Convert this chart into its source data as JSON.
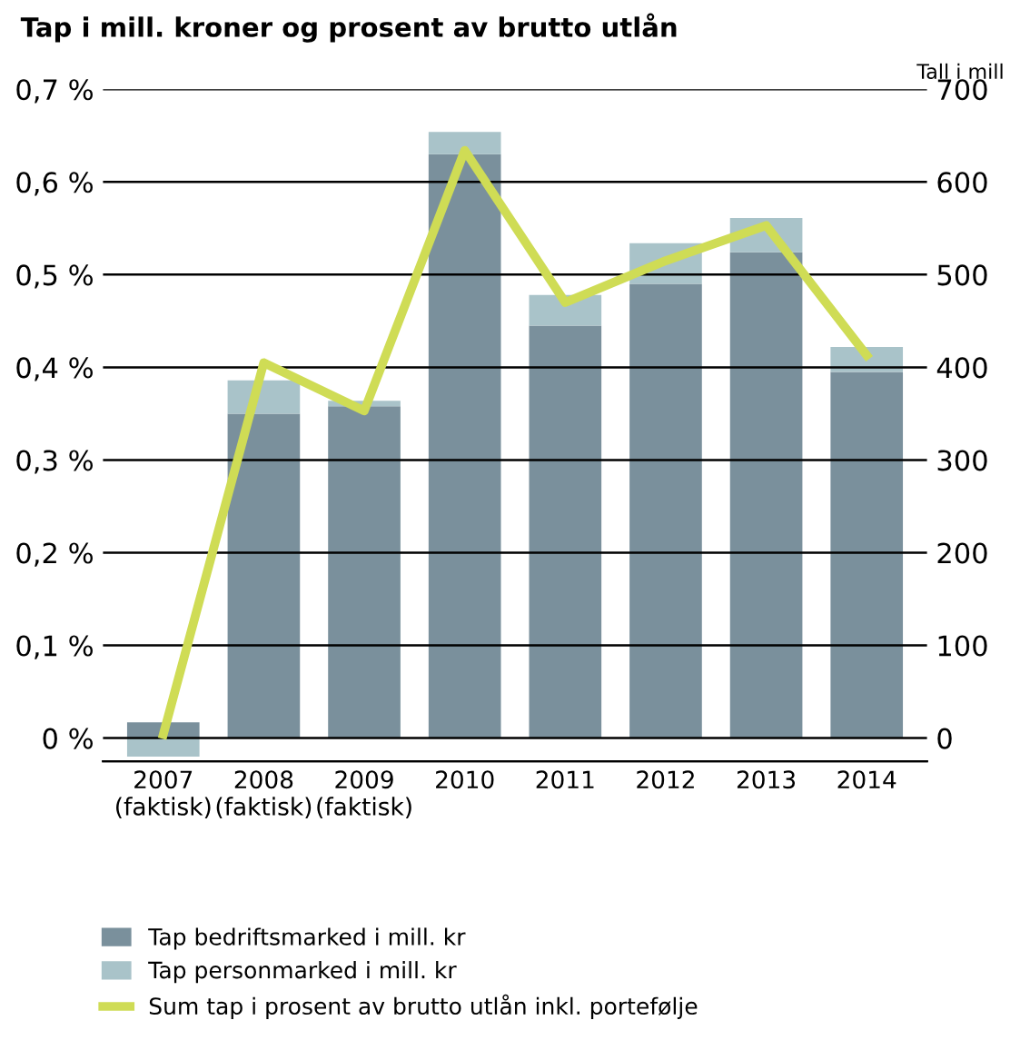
{
  "chart_data": {
    "type": "bar",
    "title": "Tap i mill. kroner og prosent av brutto utlån",
    "y2label": "Tall i mill",
    "categories": [
      "2007\n(faktisk)",
      "2008\n(faktisk)",
      "2009\n(faktisk)",
      "2010",
      "2011",
      "2012",
      "2013",
      "2014"
    ],
    "stacked": true,
    "series": [
      {
        "name": "Tap bedriftsmarked i mill. kr",
        "color": "#7a909c",
        "axis": "y2",
        "values": [
          17,
          350,
          358,
          630,
          445,
          490,
          524,
          395
        ]
      },
      {
        "name": "Tap personmarked i mill. kr",
        "color": "#a9c3c9",
        "axis": "y2",
        "values": [
          -20,
          36,
          6,
          24,
          33,
          44,
          37,
          27
        ]
      },
      {
        "name": "Sum tap i prosent av brutto utlån inkl. portefølje",
        "color": "#cfdc55",
        "type": "line",
        "axis": "y",
        "values": [
          0.004,
          0.405,
          0.353,
          0.634,
          0.47,
          0.515,
          0.553,
          0.413
        ]
      }
    ],
    "ylim": [
      -0.025,
      0.7
    ],
    "yticks": [
      {
        "value": 0,
        "label": "0 %"
      },
      {
        "value": 0.1,
        "label": "0,1 %"
      },
      {
        "value": 0.2,
        "label": "0,2 %"
      },
      {
        "value": 0.3,
        "label": "0,3 %"
      },
      {
        "value": 0.4,
        "label": "0,4 %"
      },
      {
        "value": 0.5,
        "label": "0,5 %"
      },
      {
        "value": 0.6,
        "label": "0,6 %"
      },
      {
        "value": 0.7,
        "label": "0,7 %"
      }
    ],
    "y2lim": [
      -25,
      700
    ],
    "y2ticks": [
      0,
      100,
      200,
      300,
      400,
      500,
      600,
      700
    ],
    "grid": "y",
    "legend": "bottom",
    "marker": "none",
    "line_style": "solid"
  }
}
